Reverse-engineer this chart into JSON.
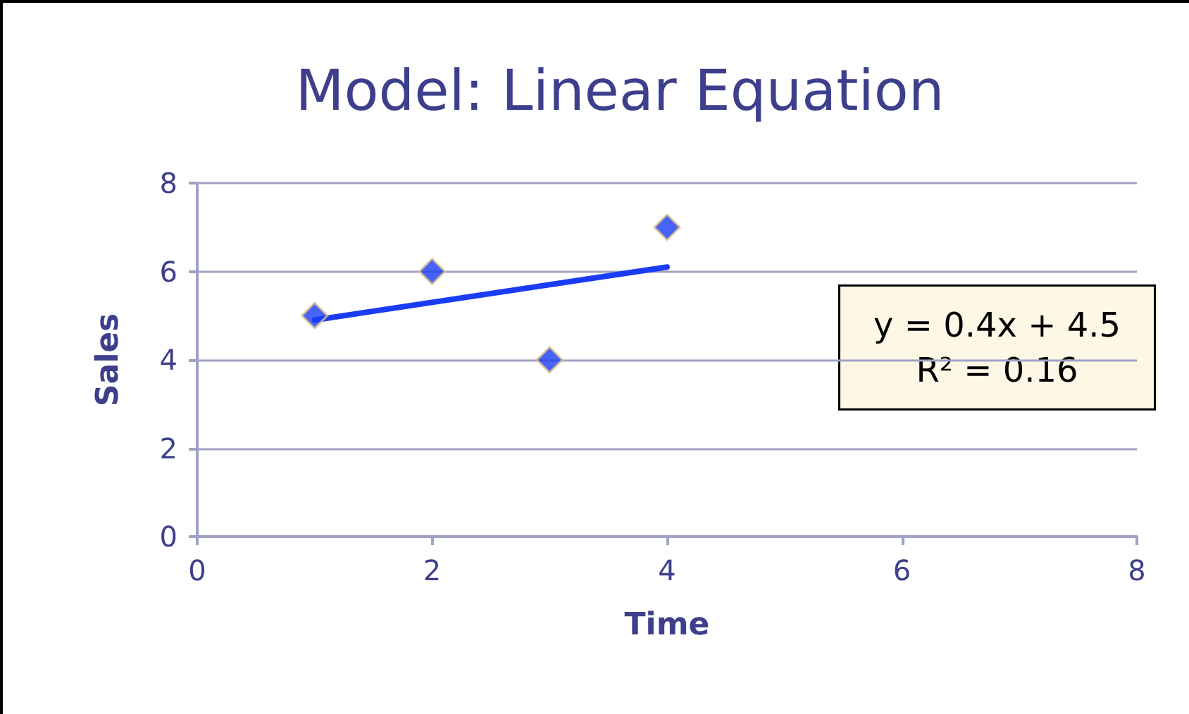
{
  "chart_data": {
    "type": "scatter",
    "title": "Model: Linear Equation",
    "xlabel": "Time",
    "ylabel": "Sales",
    "series": [
      {
        "color": "#1a3cf5",
        "x": [
          1,
          2,
          3,
          4
        ],
        "values": [
          5,
          6,
          4,
          7
        ],
        "marker": "diamond"
      },
      {
        "type": "line",
        "color": "#1a3cf5",
        "x": [
          1,
          4
        ],
        "values": [
          4.9,
          6.1
        ],
        "marker": "none",
        "line_style": "solid"
      }
    ],
    "xlim": [
      0,
      8
    ],
    "xticks": [
      0,
      2,
      4,
      6,
      8
    ],
    "ylim": [
      0,
      8
    ],
    "yticks": [
      0,
      2,
      4,
      6,
      8
    ],
    "grid": "y",
    "annotations": [
      "y = 0.4x + 4.5\nR² = 0.16"
    ]
  }
}
